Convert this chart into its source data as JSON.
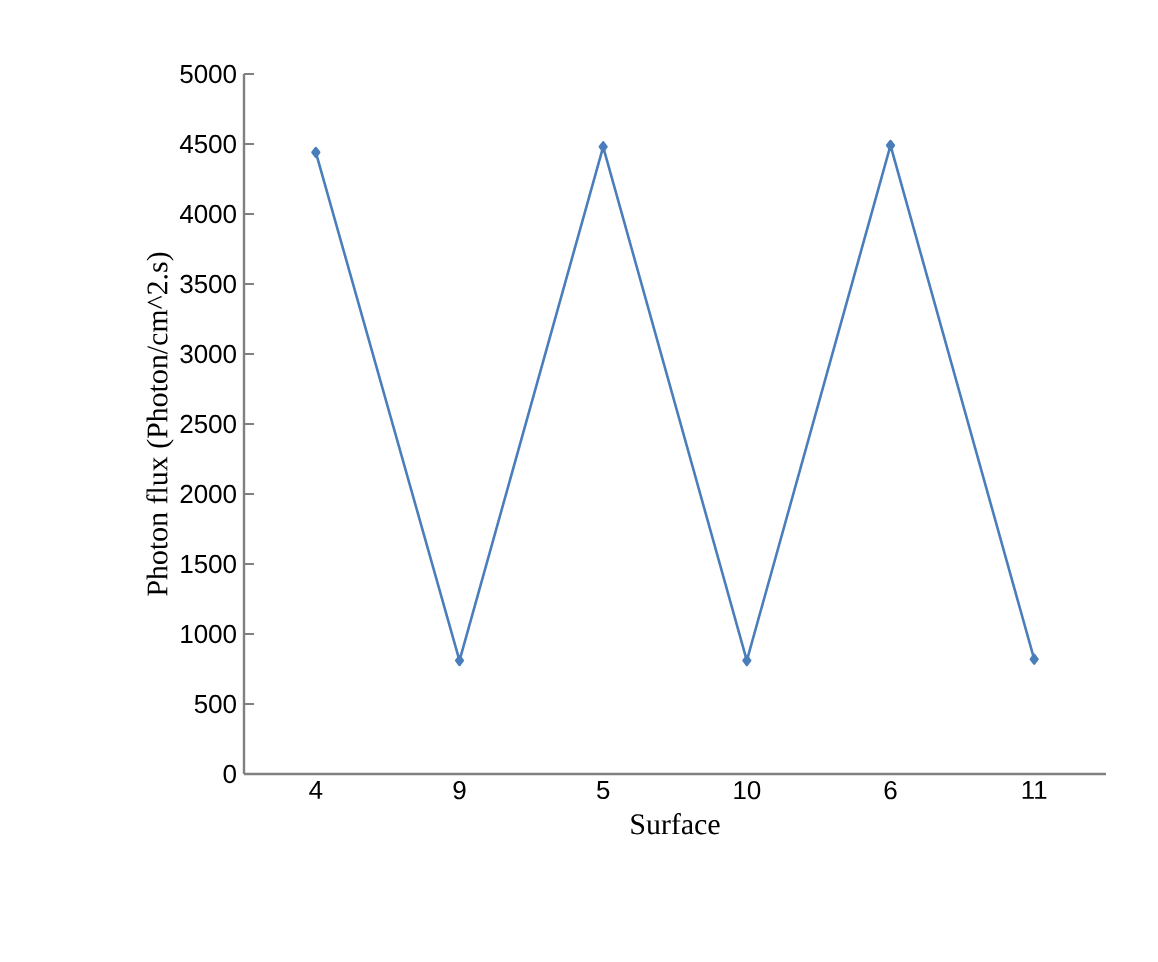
{
  "chart_data": {
    "type": "line",
    "xlabel": "Surface",
    "ylabel": "Photon flux (Photon/cm^2.s)",
    "categories": [
      "4",
      "9",
      "5",
      "10",
      "6",
      "11"
    ],
    "series": [
      {
        "color": "#4a7ebb",
        "values": [
          4440,
          810,
          4480,
          810,
          4490,
          820
        ]
      }
    ],
    "ylim": [
      0,
      5000
    ],
    "yticks": [
      0,
      500,
      1000,
      1500,
      2000,
      2500,
      3000,
      3500,
      4000,
      4500,
      5000
    ],
    "grid": false,
    "legend": false,
    "marker": "diamond",
    "line_style": "solid"
  }
}
